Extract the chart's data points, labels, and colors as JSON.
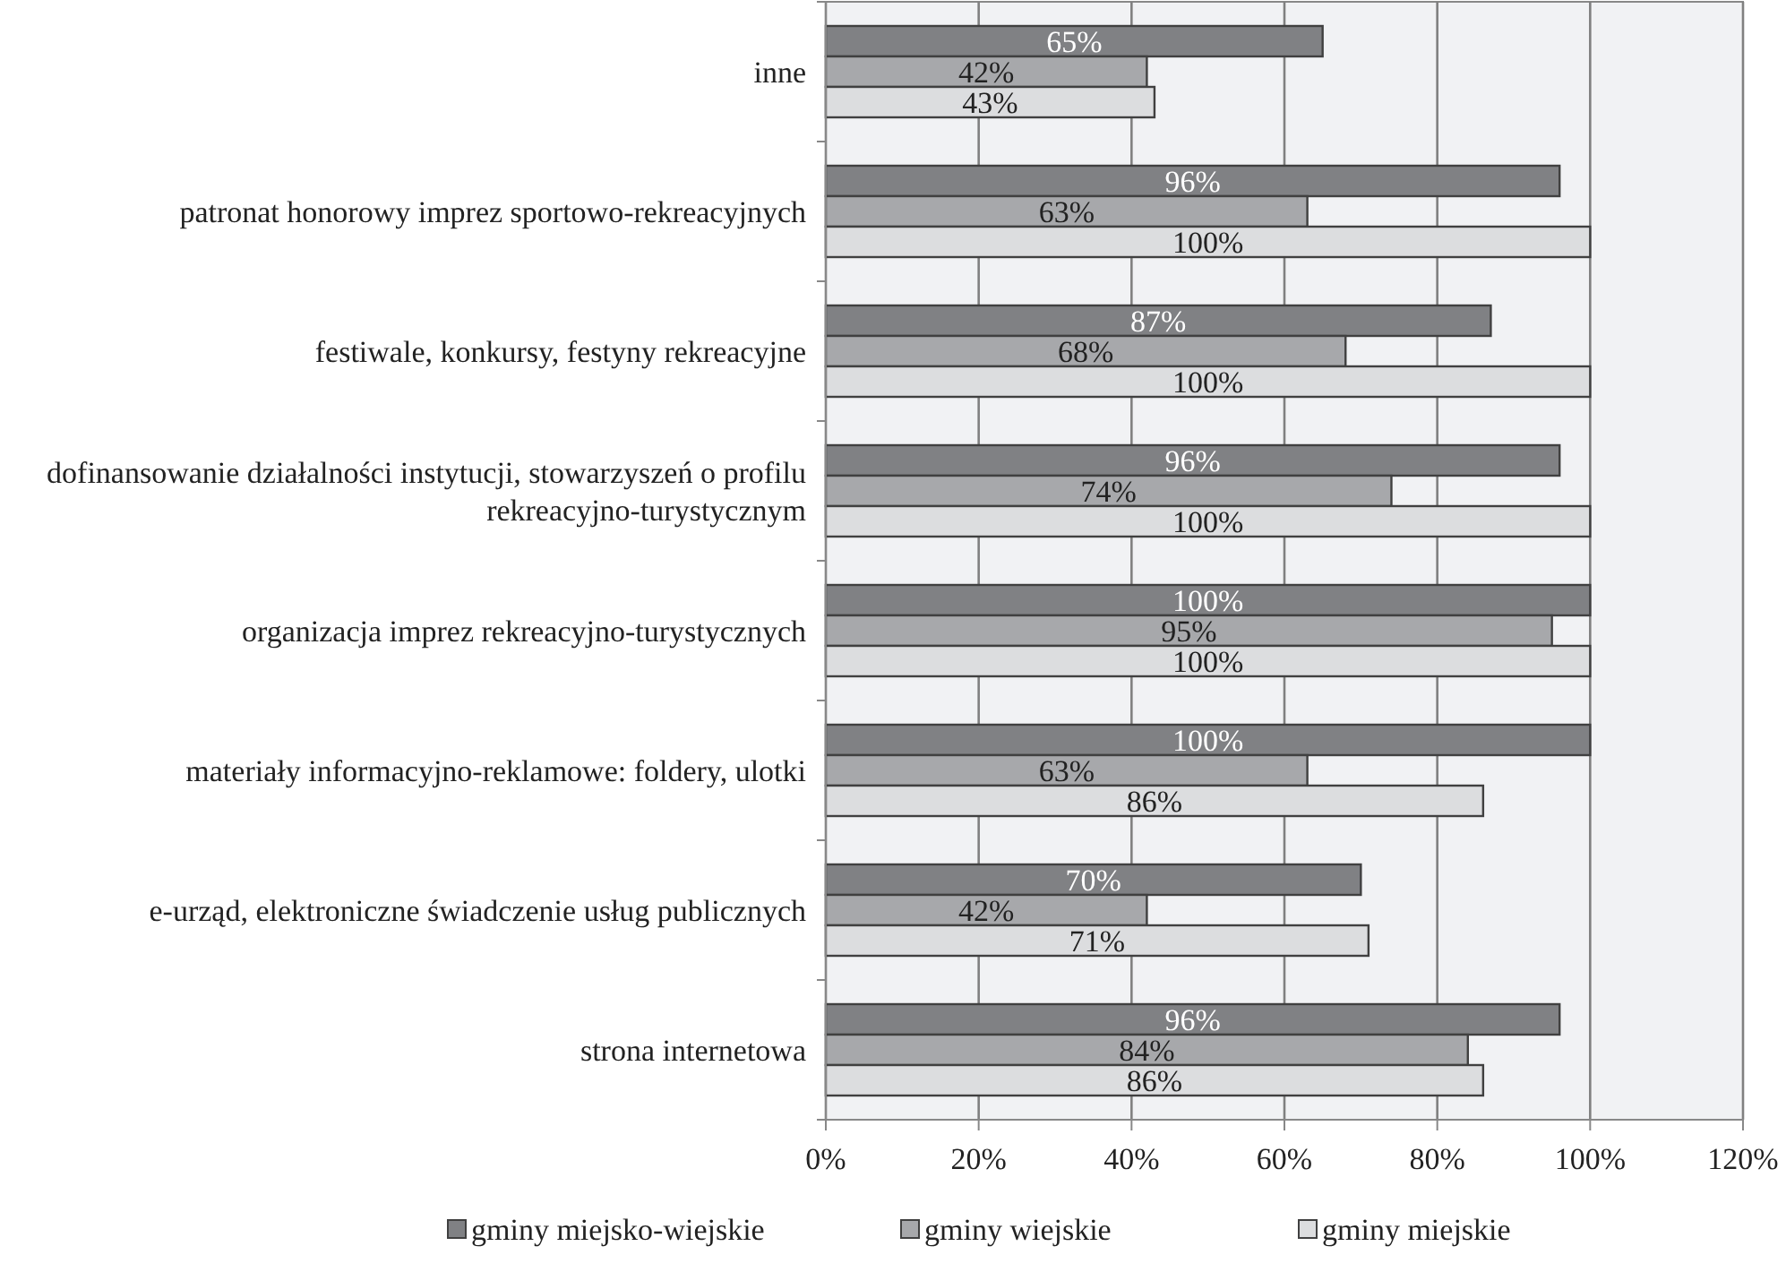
{
  "chart_data": {
    "type": "bar",
    "orientation": "horizontal",
    "categories": [
      "inne",
      "patronat honorowy imprez sportowo-rekreacyjnych",
      "festiwale, konkursy, festyny rekreacyjne",
      "dofinansowanie działalności instytucji, stowarzyszeń o profilu rekreacyjno-turystycznym",
      "organizacja imprez rekreacyjno-turystycznych",
      "materiały informacyjno-reklamowe: foldery, ulotki",
      "e-urząd, elektroniczne świadczenie usług publicznych",
      "strona internetowa"
    ],
    "series": [
      {
        "name": "gminy miejsko-wiejskie",
        "color": "#808184",
        "values": [
          65,
          96,
          87,
          96,
          100,
          100,
          70,
          96
        ],
        "value_labels": [
          "65%",
          "96%",
          "87%",
          "96%",
          "100%",
          "100%",
          "70%",
          "96%"
        ]
      },
      {
        "name": "gminy wiejskie",
        "color": "#a7a8ab",
        "values": [
          42,
          63,
          68,
          74,
          95,
          63,
          42,
          84
        ],
        "value_labels": [
          "42%",
          "63%",
          "68%",
          "74%",
          "95%",
          "63%",
          "42%",
          "84%"
        ]
      },
      {
        "name": "gminy miejskie",
        "color": "#dcdddf",
        "values": [
          43,
          100,
          100,
          100,
          100,
          86,
          71,
          86
        ],
        "value_labels": [
          "43%",
          "100%",
          "100%",
          "100%",
          "100%",
          "86%",
          "71%",
          "86%"
        ]
      }
    ],
    "xlim": [
      0,
      120
    ],
    "xticks": [
      {
        "value": 0,
        "label": "0%"
      },
      {
        "value": 20,
        "label": "20%"
      },
      {
        "value": 40,
        "label": "40%"
      },
      {
        "value": 60,
        "label": "60%"
      },
      {
        "value": 80,
        "label": "80%"
      },
      {
        "value": 100,
        "label": "100%"
      },
      {
        "value": 120,
        "label": "120%"
      }
    ],
    "grid": "x",
    "legend": "bottom"
  }
}
